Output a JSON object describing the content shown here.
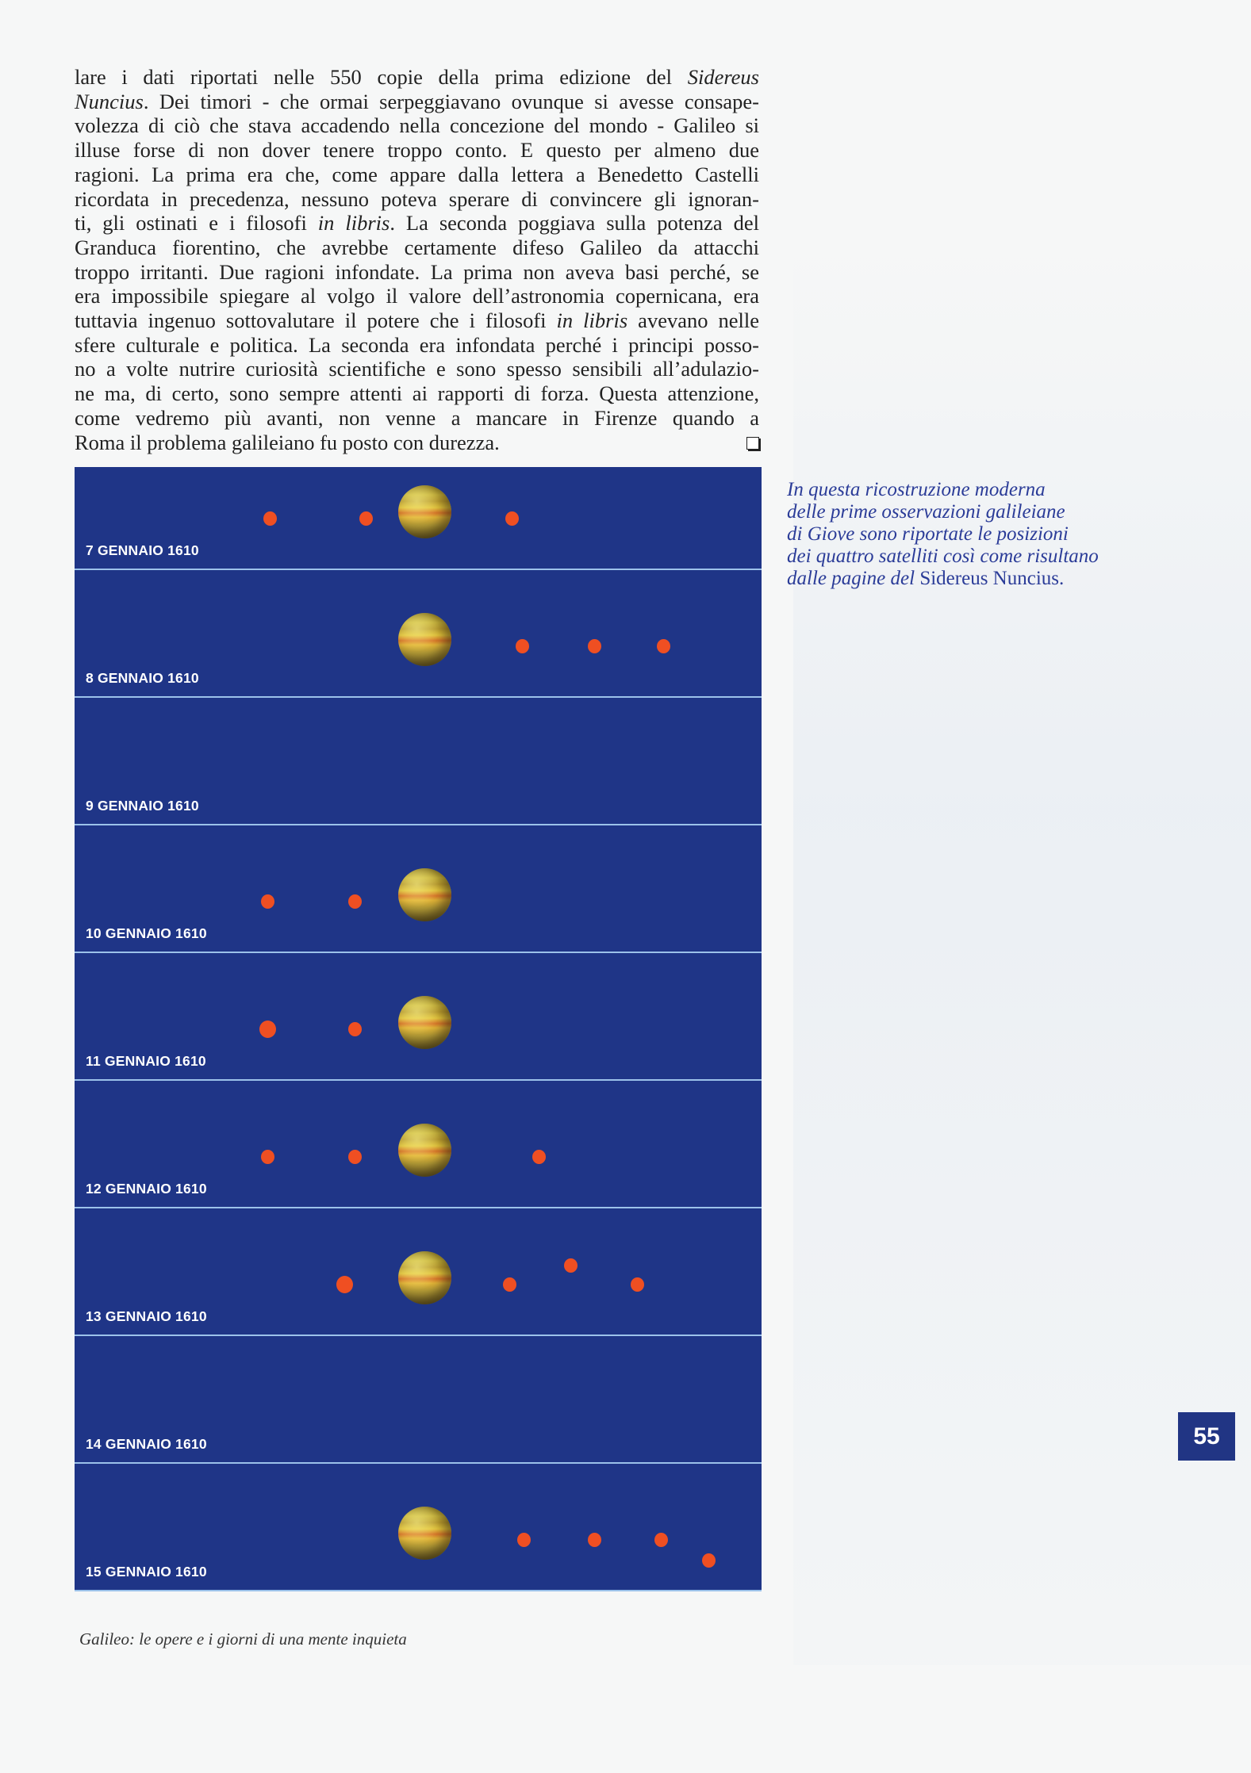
{
  "body_text": {
    "lines": [
      [
        {
          "t": "lare i dati riportati nelle 550 copie della prima edizione del "
        },
        {
          "t": "Sidereus",
          "i": true
        }
      ],
      [
        {
          "t": "Nuncius",
          "i": true
        },
        {
          "t": ". Dei timori - che ormai serpeggiavano ovunque si avesse consape-"
        }
      ],
      [
        {
          "t": "volezza di ciò che stava accadendo nella concezione del mondo - Galileo si"
        }
      ],
      [
        {
          "t": "illuse forse di non dover tenere troppo conto. E questo per almeno due"
        }
      ],
      [
        {
          "t": "ragioni. La prima era che, come appare dalla lettera a Benedetto Castelli"
        }
      ],
      [
        {
          "t": "ricordata in precedenza, nessuno poteva sperare di convincere gli ignoran-"
        }
      ],
      [
        {
          "t": "ti, gli ostinati e i filosofi "
        },
        {
          "t": "in libris",
          "i": true
        },
        {
          "t": ". La seconda poggiava sulla potenza del"
        }
      ],
      [
        {
          "t": "Granduca fiorentino, che avrebbe certamente difeso Galileo da attacchi"
        }
      ],
      [
        {
          "t": "troppo irritanti. Due ragioni infondate. La prima non aveva basi perché, se"
        }
      ],
      [
        {
          "t": "era impossibile spiegare al volgo il valore dell’astronomia copernicana, era"
        }
      ],
      [
        {
          "t": "tuttavia ingenuo sottovalutare il potere che i filosofi "
        },
        {
          "t": "in libris",
          "i": true
        },
        {
          "t": " avevano nelle"
        }
      ],
      [
        {
          "t": "sfere culturale e politica. La seconda era infondata perché i principi posso-"
        }
      ],
      [
        {
          "t": "no a volte nutrire curiosità scientifiche e sono spesso sensibili all’adulazio-"
        }
      ],
      [
        {
          "t": "ne ma, di certo, sono sempre attenti ai rapporti di forza. Questa attenzione,"
        }
      ],
      [
        {
          "t": "come vedremo più avanti, non venne a mancare in Firenze quando a"
        }
      ],
      [
        {
          "t": "Roma il problema galileiano fu posto con durezza."
        }
      ]
    ],
    "end_mark_icon": "hollow-square-end-mark"
  },
  "figure": {
    "colors": {
      "sky": "#1f3587",
      "moon": "#ef4f22",
      "divider": "#9cc2ea"
    },
    "panels": [
      {
        "label": "7 GENNAIO 1610",
        "jupiter": true,
        "moons_offset_jupiter_radii": [
          {
            "x": -5.8
          },
          {
            "x": -2.2
          },
          {
            "x": 3.3
          }
        ]
      },
      {
        "label": "8 GENNAIO 1610",
        "jupiter": true,
        "moons_offset_jupiter_radii": [
          {
            "x": 3.7
          },
          {
            "x": 6.4
          },
          {
            "x": 9.0
          }
        ]
      },
      {
        "label": "9 GENNAIO 1610",
        "jupiter": false,
        "moons_offset_jupiter_radii": []
      },
      {
        "label": "10 GENNAIO 1610",
        "jupiter": true,
        "moons_offset_jupiter_radii": [
          {
            "x": -5.9
          },
          {
            "x": -2.6
          }
        ]
      },
      {
        "label": "11 GENNAIO 1610",
        "jupiter": true,
        "moons_offset_jupiter_radii": [
          {
            "x": -5.9,
            "big": true
          },
          {
            "x": -2.6
          }
        ]
      },
      {
        "label": "12 GENNAIO 1610",
        "jupiter": true,
        "moons_offset_jupiter_radii": [
          {
            "x": -5.9
          },
          {
            "x": -2.6
          },
          {
            "x": 4.3
          }
        ]
      },
      {
        "label": "13 GENNAIO 1610",
        "jupiter": true,
        "moons_offset_jupiter_radii": [
          {
            "x": -3.0,
            "big": true
          },
          {
            "x": 3.2
          },
          {
            "x": 5.5,
            "y": -0.7
          },
          {
            "x": 8.0
          }
        ]
      },
      {
        "label": "14 GENNAIO 1610",
        "jupiter": false,
        "moons_offset_jupiter_radii": []
      },
      {
        "label": "15 GENNAIO 1610",
        "jupiter": true,
        "moons_offset_jupiter_radii": [
          {
            "x": 3.75
          },
          {
            "x": 6.4
          },
          {
            "x": 8.9
          },
          {
            "x": 10.7,
            "y": 0.8
          }
        ]
      }
    ]
  },
  "caption": {
    "lines": [
      [
        {
          "t": "In questa ricostruzione moderna",
          "i": true
        }
      ],
      [
        {
          "t": "delle prime osservazioni galileiane",
          "i": true
        }
      ],
      [
        {
          "t": "di Giove sono riportate le posizioni",
          "i": true
        }
      ],
      [
        {
          "t": "dei quattro satelliti così come risultano",
          "i": true
        }
      ],
      [
        {
          "t": "dalle pagine del ",
          "i": true
        },
        {
          "t": "Sidereus Nuncius."
        }
      ]
    ]
  },
  "page_number": "55",
  "footer": "Galileo: le opere e i giorni di una mente inquieta"
}
